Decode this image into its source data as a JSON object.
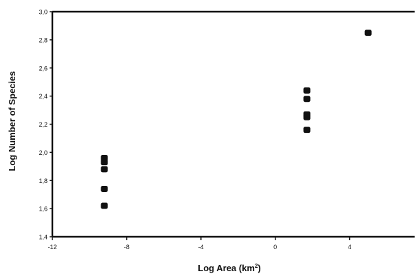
{
  "chart_data": {
    "type": "scatter",
    "title": "",
    "xlabel": "Log Area (km",
    "xlabel_sup": "2",
    "xlabel_close": ")",
    "ylabel": "Log Number of Species",
    "xlim": [
      -12,
      7.5
    ],
    "ylim": [
      1.4,
      3.0
    ],
    "xticks": [
      -12,
      -8,
      -4,
      0,
      4
    ],
    "xtick_labels": [
      "-12",
      "-8",
      "-4",
      "0",
      "4"
    ],
    "yticks": [
      1.4,
      1.6,
      1.8,
      2.0,
      2.2,
      2.4,
      2.6,
      2.8,
      3.0
    ],
    "ytick_labels": [
      "1,4",
      "1,6",
      "1,8",
      "2,0",
      "2,2",
      "2,4",
      "2,6",
      "2,8",
      "3,0"
    ],
    "grid": false,
    "marker_color": "#111111",
    "series": [
      {
        "points": [
          {
            "x": -9.2,
            "y": 1.62
          },
          {
            "x": -9.2,
            "y": 1.74
          },
          {
            "x": -9.2,
            "y": 1.88
          },
          {
            "x": -9.2,
            "y": 1.93
          },
          {
            "x": -9.2,
            "y": 1.96
          },
          {
            "x": 1.7,
            "y": 2.16
          },
          {
            "x": 1.7,
            "y": 2.25
          },
          {
            "x": 1.7,
            "y": 2.27
          },
          {
            "x": 1.7,
            "y": 2.38
          },
          {
            "x": 1.7,
            "y": 2.44
          },
          {
            "x": 5.0,
            "y": 2.85
          }
        ]
      }
    ]
  }
}
